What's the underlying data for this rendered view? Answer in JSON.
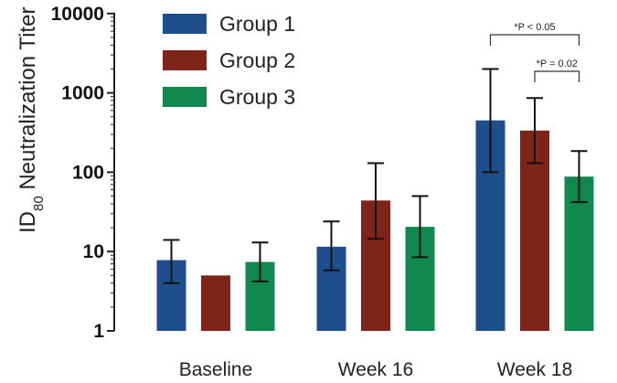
{
  "chart_data": {
    "type": "bar",
    "scale": "log",
    "ylabel_main": "ID",
    "ylabel_sub": "80",
    "ylabel_rest": " Neutralization Titer",
    "ylim": [
      1,
      10000
    ],
    "yticks": [
      "1",
      "10",
      "100",
      "1000",
      "10000"
    ],
    "categories": [
      "Baseline",
      "Week 16",
      "Week 18"
    ],
    "series": [
      {
        "name": "Group 1",
        "color": "#1f4e8c",
        "values": [
          7.8,
          11.5,
          450
        ],
        "err_low": [
          4,
          5.8,
          100
        ],
        "err_high": [
          14,
          24,
          2000
        ]
      },
      {
        "name": "Group 2",
        "color": "#7f2418",
        "values": [
          5,
          44,
          335
        ],
        "err_low": [
          5,
          14.5,
          130
        ],
        "err_high": [
          5,
          130,
          860
        ]
      },
      {
        "name": "Group 3",
        "color": "#10894f",
        "values": [
          7.4,
          20.5,
          88
        ],
        "err_low": [
          4.2,
          8.5,
          42
        ],
        "err_high": [
          13,
          50,
          185
        ]
      }
    ],
    "legend": "top-left",
    "annotations": [
      {
        "text": "*P < 0.05",
        "category": "Week 18",
        "from": "Group 1",
        "to": "Group 3"
      },
      {
        "text": "*P = 0.02",
        "category": "Week 18",
        "from": "Group 2",
        "to": "Group 3"
      }
    ]
  }
}
